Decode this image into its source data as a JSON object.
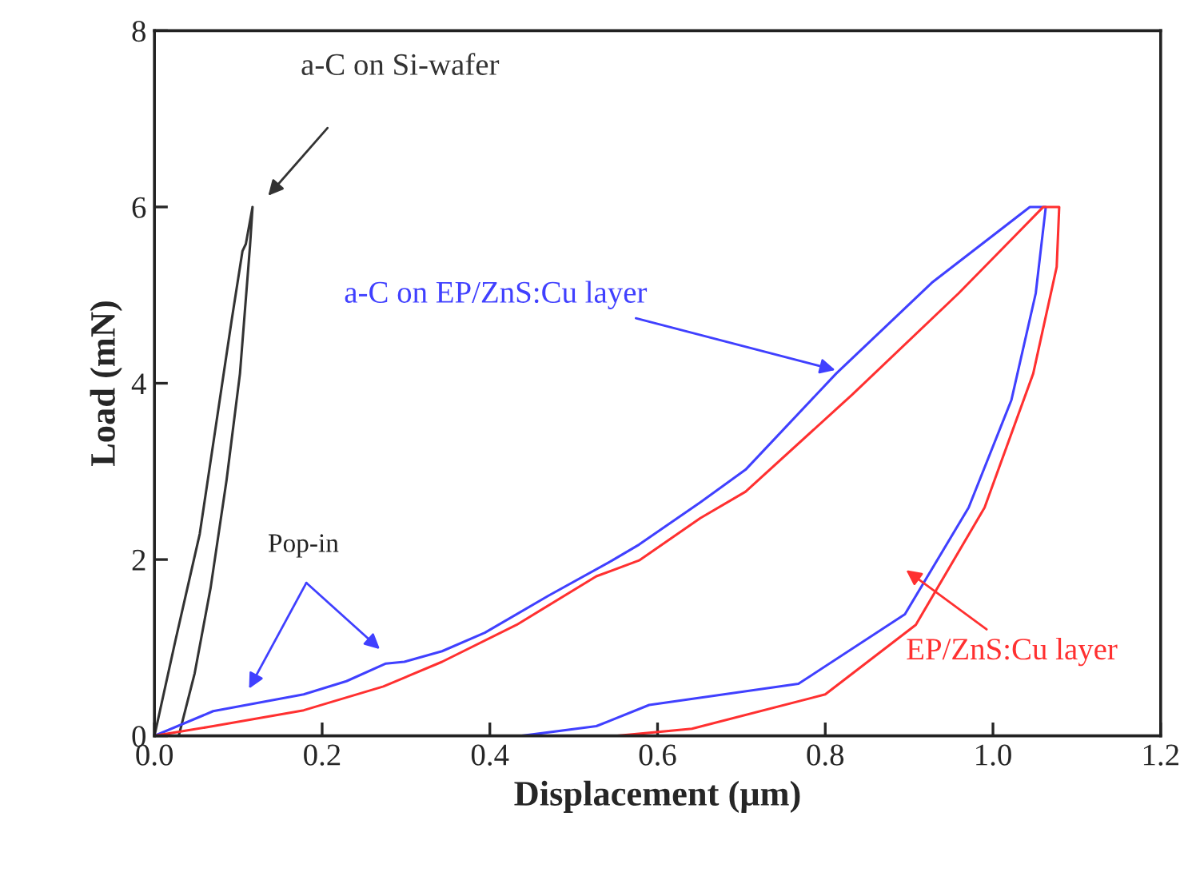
{
  "chart_data": {
    "type": "line",
    "xlabel": "Displacement (μm)",
    "ylabel": "Load (mN)",
    "xlim": [
      0,
      1.2
    ],
    "xticks": [
      {
        "value": 0,
        "label": "0.0"
      },
      0.2,
      0.4,
      0.6,
      0.8,
      {
        "value": 1.0,
        "label": "1.0"
      },
      1.2
    ],
    "ylim": [
      0,
      8
    ],
    "yticks": [
      0,
      2,
      4,
      6,
      8
    ],
    "grid": false,
    "series": [
      {
        "color": "#333333",
        "x": [
          0,
          0.025,
          0.054,
          0.073,
          0.092,
          0.105,
          0.109,
          0.117,
          0.114,
          0.102,
          0.086,
          0.067,
          0.048,
          0.029
        ],
        "values": [
          0,
          1.08,
          2.29,
          3.5,
          4.71,
          5.5,
          5.58,
          6.0,
          5.56,
          4.11,
          2.9,
          1.68,
          0.71,
          0
        ]
      },
      {
        "color": "#4040ff",
        "x": [
          0,
          0.07,
          0.178,
          0.229,
          0.276,
          0.298,
          0.343,
          0.394,
          0.47,
          0.546,
          0.578,
          0.651,
          0.705,
          0.813,
          0.927,
          1.044,
          1.063,
          1.051,
          1.022,
          0.971,
          0.895,
          0.768,
          0.59,
          0.527,
          0.438
        ],
        "values": [
          0,
          0.28,
          0.47,
          0.62,
          0.82,
          0.84,
          0.96,
          1.17,
          1.59,
          1.99,
          2.17,
          2.65,
          3.02,
          4.11,
          5.14,
          6.0,
          6.0,
          5.02,
          3.81,
          2.59,
          1.38,
          0.59,
          0.35,
          0.11,
          0
        ]
      },
      {
        "color": "#ff3030",
        "x": [
          0,
          0.07,
          0.178,
          0.273,
          0.343,
          0.432,
          0.527,
          0.578,
          0.651,
          0.705,
          0.832,
          0.959,
          1.06,
          1.079,
          1.076,
          1.048,
          0.99,
          0.908,
          0.8,
          0.641,
          0.552
        ],
        "values": [
          0,
          0.11,
          0.29,
          0.56,
          0.84,
          1.26,
          1.81,
          1.99,
          2.47,
          2.77,
          3.87,
          5.02,
          6.0,
          6.0,
          5.32,
          4.11,
          2.59,
          1.26,
          0.47,
          0.08,
          0
        ]
      }
    ],
    "annotations": [
      "a-C on Si-wafer",
      {
        "text": "a-C on EP/ZnS:Cu layer",
        "x": 0.812,
        "y": 4.15
      },
      "EP/ZnS:Cu layer",
      "Pop-in"
    ]
  }
}
